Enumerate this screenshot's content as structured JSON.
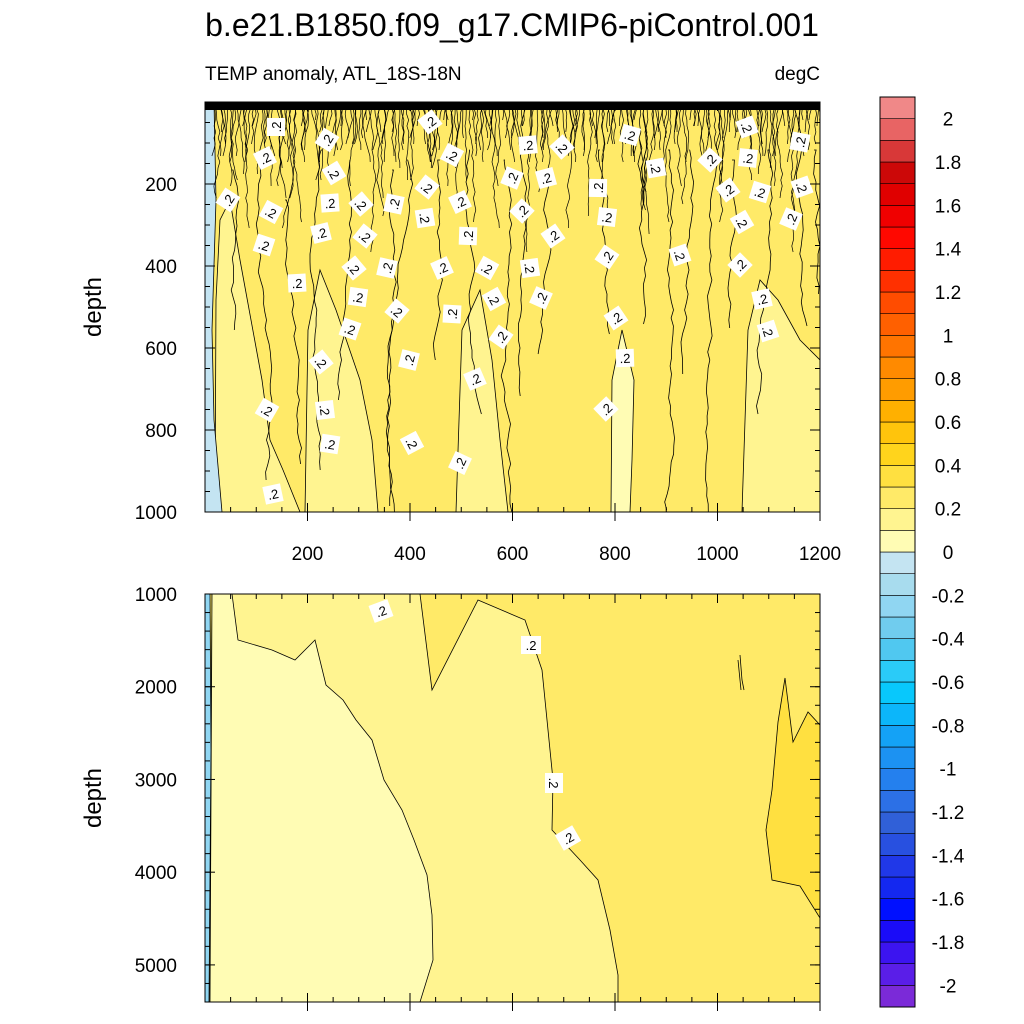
{
  "chart_data": {
    "type": "heatmap",
    "title": "b.e21.B1850.f09_g17.CMIP6-piControl.001",
    "subtitle_left": "TEMP anomaly, ATL_18S-18N",
    "subtitle_right": "degC",
    "xlabel": "",
    "xlim": [
      0,
      1200
    ],
    "x_ticks": [
      "200",
      "400",
      "600",
      "800",
      "1000",
      "1200"
    ],
    "panels": [
      {
        "name": "upper",
        "ylabel": "depth",
        "ylim": [
          0,
          1000
        ],
        "y_ticks": [
          "200",
          "400",
          "600",
          "800",
          "1000"
        ],
        "contour_labels": [
          ".2",
          ".2",
          ".2",
          ".2",
          ".2",
          ".2",
          ".2",
          ".2",
          ".2",
          ".2",
          ".2",
          ".2",
          ".2",
          ".2",
          ".2",
          ".2",
          ".2",
          ".2",
          ".2",
          ".2",
          ".2",
          ".2",
          ".2",
          ".2",
          ".2",
          ".2",
          ".2",
          ".2",
          ".2",
          ".2",
          ".2",
          ".2",
          ".2",
          ".2",
          ".2",
          ".2",
          ".2",
          ".2",
          ".2",
          ".2",
          ".2",
          ".2",
          ".2",
          ".2",
          ".2",
          ".2",
          ".2",
          ".2",
          ".2",
          ".2",
          ".2",
          ".2",
          ".2",
          ".2",
          ".2",
          ".2",
          ".2",
          ".2",
          ".2",
          ".2",
          ".2",
          ".2",
          ".2",
          ".2",
          ".2"
        ]
      },
      {
        "name": "lower",
        "ylabel": "depth",
        "ylim": [
          1000,
          5400
        ],
        "y_ticks": [
          "1000",
          "2000",
          "3000",
          "4000",
          "5000"
        ],
        "contour_labels": [
          ".2",
          ".2",
          ".2",
          ".2"
        ]
      }
    ],
    "colorbar": {
      "levels": [
        -2.1,
        -2,
        -1.9,
        -1.8,
        -1.7,
        -1.6,
        -1.5,
        -1.4,
        -1.3,
        -1.2,
        -1.1,
        -1,
        -0.9,
        -0.8,
        -0.7,
        -0.6,
        -0.5,
        -0.4,
        -0.3,
        -0.2,
        -0.1,
        0,
        0.1,
        0.2,
        0.3,
        0.4,
        0.5,
        0.6,
        0.7,
        0.8,
        0.9,
        1,
        1.1,
        1.2,
        1.3,
        1.4,
        1.5,
        1.6,
        1.7,
        1.8,
        1.9,
        2,
        2.1
      ],
      "colors": [
        "#7b2ad8",
        "#5a1ee8",
        "#3c14f0",
        "#1a0cf8",
        "#0010ff",
        "#1428f0",
        "#2038e8",
        "#2850e0",
        "#3060d8",
        "#2c70e6",
        "#2480ee",
        "#1c92f2",
        "#14a2f6",
        "#0cb6fa",
        "#08c8fc",
        "#2acbf8",
        "#50c8f0",
        "#70ccee",
        "#90d6f2",
        "#a8dcee",
        "#c4e4f2",
        "#fffcb4",
        "#fff490",
        "#ffea68",
        "#ffe040",
        "#ffd41c",
        "#ffc40c",
        "#ffb000",
        "#ff9c00",
        "#ff8a00",
        "#ff7400",
        "#ff6000",
        "#ff4c00",
        "#ff3000",
        "#ff1c00",
        "#ff0800",
        "#f00000",
        "#e00000",
        "#cc0808",
        "#d83838",
        "#e86464",
        "#f08888",
        "#f8b4b4"
      ],
      "tick_labels": [
        "-2",
        "-1.8",
        "-1.6",
        "-1.4",
        "-1.2",
        "-1",
        "-0.8",
        "-0.6",
        "-0.4",
        "-0.2",
        "0",
        "0.2",
        "0.4",
        "0.6",
        "0.8",
        "1",
        "1.2",
        "1.4",
        "1.6",
        "1.8",
        "2"
      ]
    }
  }
}
